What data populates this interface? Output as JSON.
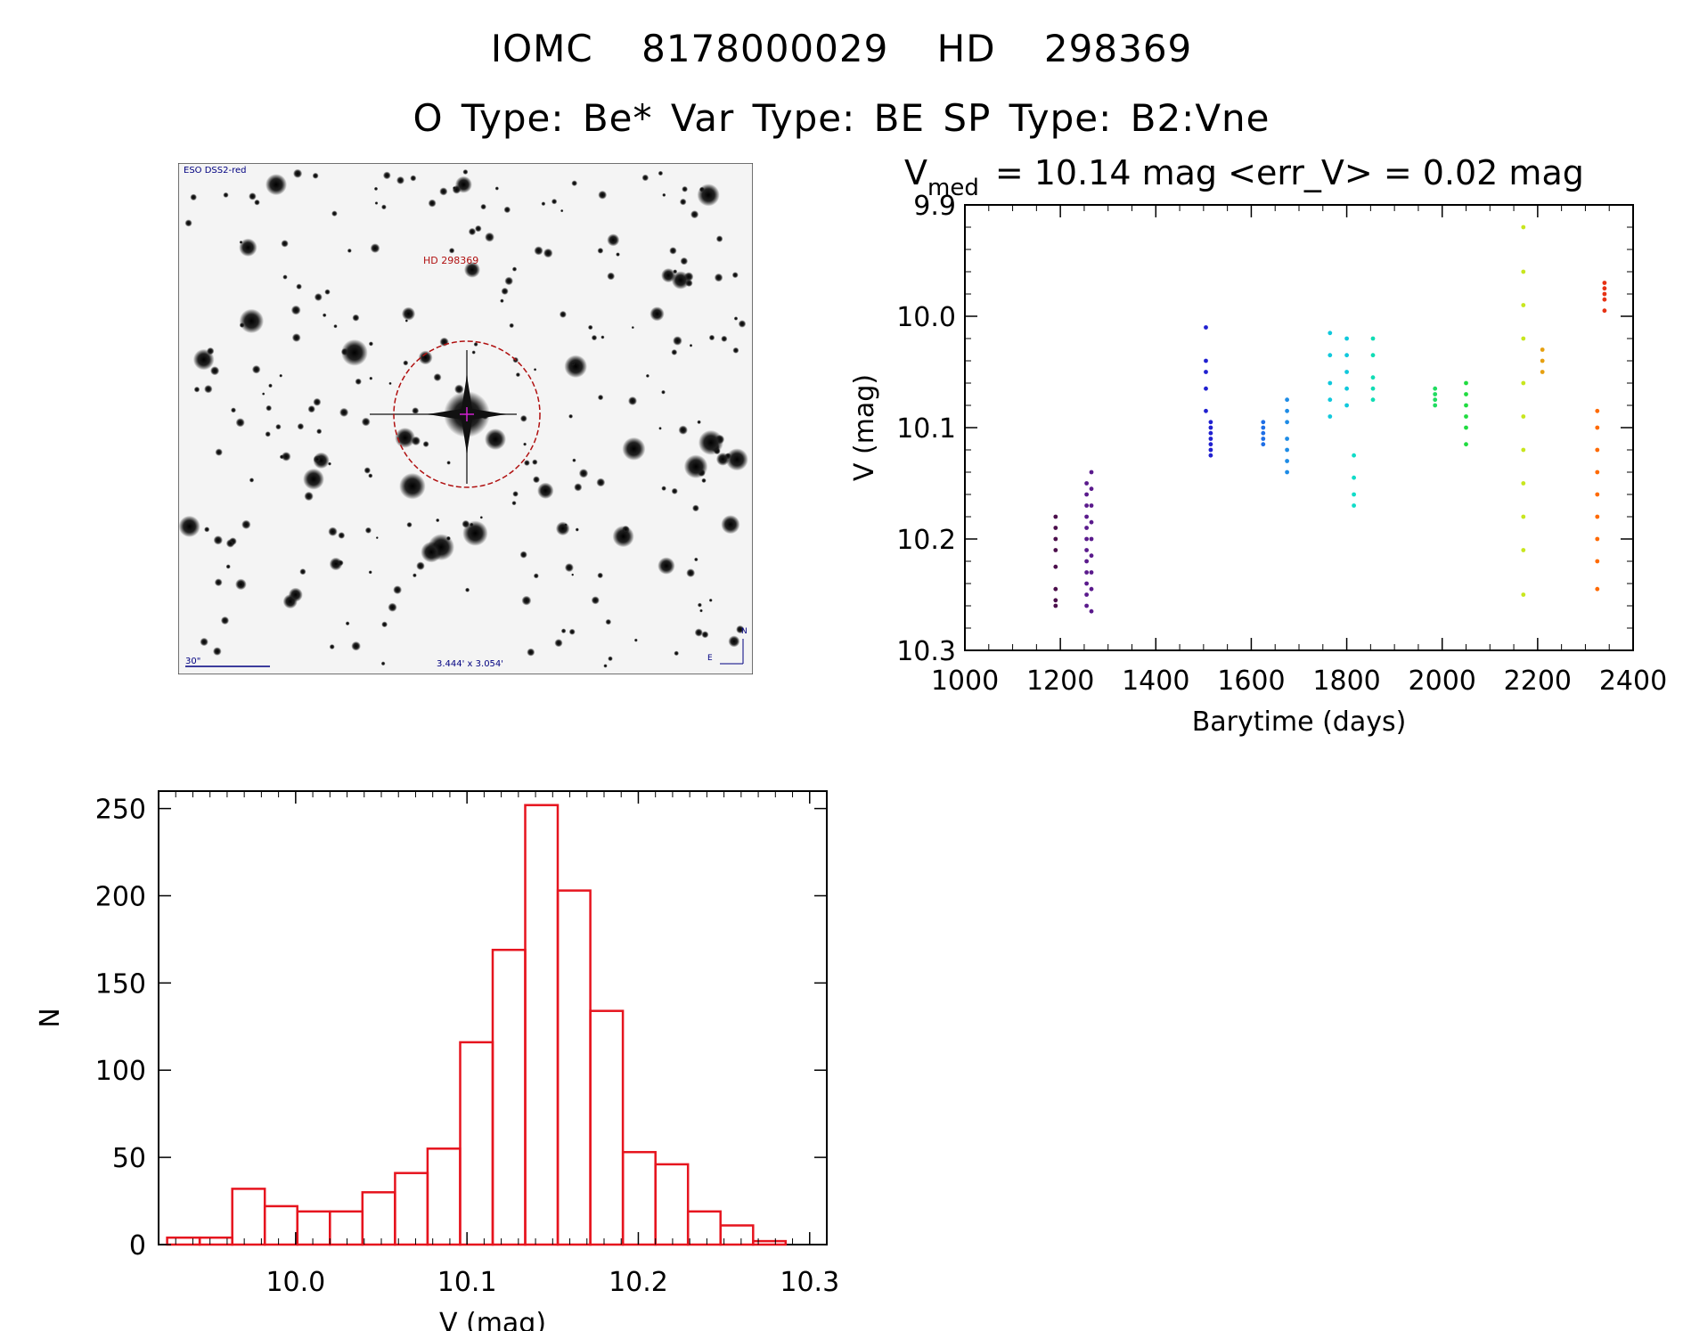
{
  "header": {
    "title_line1": "IOMC 8178000029    HD 298369",
    "title_line2": "O Type: Be*  Var Type: BE  SP Type: B2:Vne"
  },
  "finder_chart": {
    "survey_label": "ESO DSS2-red",
    "object_label": "HD 298369",
    "scale_label": "30\"",
    "size_label": "3.444' x 3.054'",
    "north_label": "N",
    "east_label": "E",
    "circle_color": "#b01010",
    "label_color": "#000080"
  },
  "chart_data": [
    {
      "type": "scatter",
      "title_main": "V",
      "title_sub": "med",
      "title_rest": "= 10.14 mag <err_V> = 0.02 mag",
      "xlabel": "Barytime (days)",
      "ylabel": "V (mag)",
      "xlim": [
        1000,
        2400
      ],
      "ylim": [
        10.3,
        9.9
      ],
      "y_inverted": true,
      "xticks": [
        1000,
        1200,
        1400,
        1600,
        1800,
        2000,
        2200,
        2400
      ],
      "yticks": [
        9.9,
        10.0,
        10.1,
        10.2,
        10.3
      ],
      "ytick_labels": [
        "9.9",
        "10.0",
        "10.1",
        "10.2",
        "10.3"
      ],
      "groups": [
        {
          "x": 1190,
          "y": [
            10.18,
            10.19,
            10.2,
            10.21,
            10.225,
            10.245,
            10.255,
            10.26
          ],
          "color": "#4b0f4b"
        },
        {
          "x": 1255,
          "y": [
            10.15,
            10.16,
            10.17,
            10.18,
            10.19,
            10.2,
            10.21,
            10.22,
            10.23,
            10.24,
            10.25,
            10.26
          ],
          "color": "#5a1a8c"
        },
        {
          "x": 1265,
          "y": [
            10.14,
            10.155,
            10.17,
            10.185,
            10.2,
            10.215,
            10.23,
            10.245,
            10.265
          ],
          "color": "#5a1a8c"
        },
        {
          "x": 1505,
          "y": [
            10.01,
            10.04,
            10.05,
            10.065,
            10.085
          ],
          "color": "#2020d0"
        },
        {
          "x": 1515,
          "y": [
            10.095,
            10.1,
            10.105,
            10.11,
            10.115,
            10.12,
            10.125
          ],
          "color": "#2020d0"
        },
        {
          "x": 1625,
          "y": [
            10.095,
            10.1,
            10.105,
            10.11,
            10.115
          ],
          "color": "#1e6ee6"
        },
        {
          "x": 1675,
          "y": [
            10.075,
            10.085,
            10.095,
            10.11,
            10.12,
            10.13,
            10.14
          ],
          "color": "#1e8ce6"
        },
        {
          "x": 1765,
          "y": [
            10.015,
            10.035,
            10.06,
            10.075,
            10.09
          ],
          "color": "#10c8dc"
        },
        {
          "x": 1800,
          "y": [
            10.02,
            10.035,
            10.05,
            10.065,
            10.08
          ],
          "color": "#10c8dc"
        },
        {
          "x": 1815,
          "y": [
            10.125,
            10.145,
            10.16,
            10.17
          ],
          "color": "#10dcc8"
        },
        {
          "x": 1855,
          "y": [
            10.02,
            10.035,
            10.055,
            10.065,
            10.075
          ],
          "color": "#10dcb4"
        },
        {
          "x": 1985,
          "y": [
            10.065,
            10.07,
            10.075,
            10.08
          ],
          "color": "#20dc60"
        },
        {
          "x": 2050,
          "y": [
            10.06,
            10.07,
            10.08,
            10.09,
            10.1,
            10.115
          ],
          "color": "#20dc40"
        },
        {
          "x": 2170,
          "y": [
            9.92,
            9.96,
            9.99,
            10.02,
            10.06,
            10.09,
            10.12,
            10.15,
            10.18,
            10.21,
            10.25
          ],
          "color": "#c8e61e"
        },
        {
          "x": 2210,
          "y": [
            10.03,
            10.04,
            10.05
          ],
          "color": "#e6a010"
        },
        {
          "x": 2325,
          "y": [
            10.085,
            10.1,
            10.12,
            10.14,
            10.16,
            10.18,
            10.2,
            10.22,
            10.245
          ],
          "color": "#ff6a00"
        },
        {
          "x": 2340,
          "y": [
            9.97,
            9.975,
            9.98,
            9.985,
            9.995
          ],
          "color": "#e63214"
        }
      ]
    },
    {
      "type": "bar",
      "xlabel": "V (mag)",
      "ylabel": "N",
      "xlim": [
        9.92,
        10.31
      ],
      "ylim": [
        0,
        260
      ],
      "xticks": [
        10.0,
        10.1,
        10.2,
        10.3
      ],
      "xtick_labels": [
        "10.0",
        "10.1",
        "10.2",
        "10.3"
      ],
      "yticks": [
        0,
        50,
        100,
        150,
        200,
        250
      ],
      "bin_start": 9.925,
      "bin_width": 0.019,
      "values": [
        4,
        4,
        32,
        22,
        19,
        19,
        30,
        41,
        55,
        116,
        169,
        252,
        203,
        134,
        53,
        46,
        19,
        11,
        2
      ],
      "bar_color": "#e6141e"
    }
  ]
}
